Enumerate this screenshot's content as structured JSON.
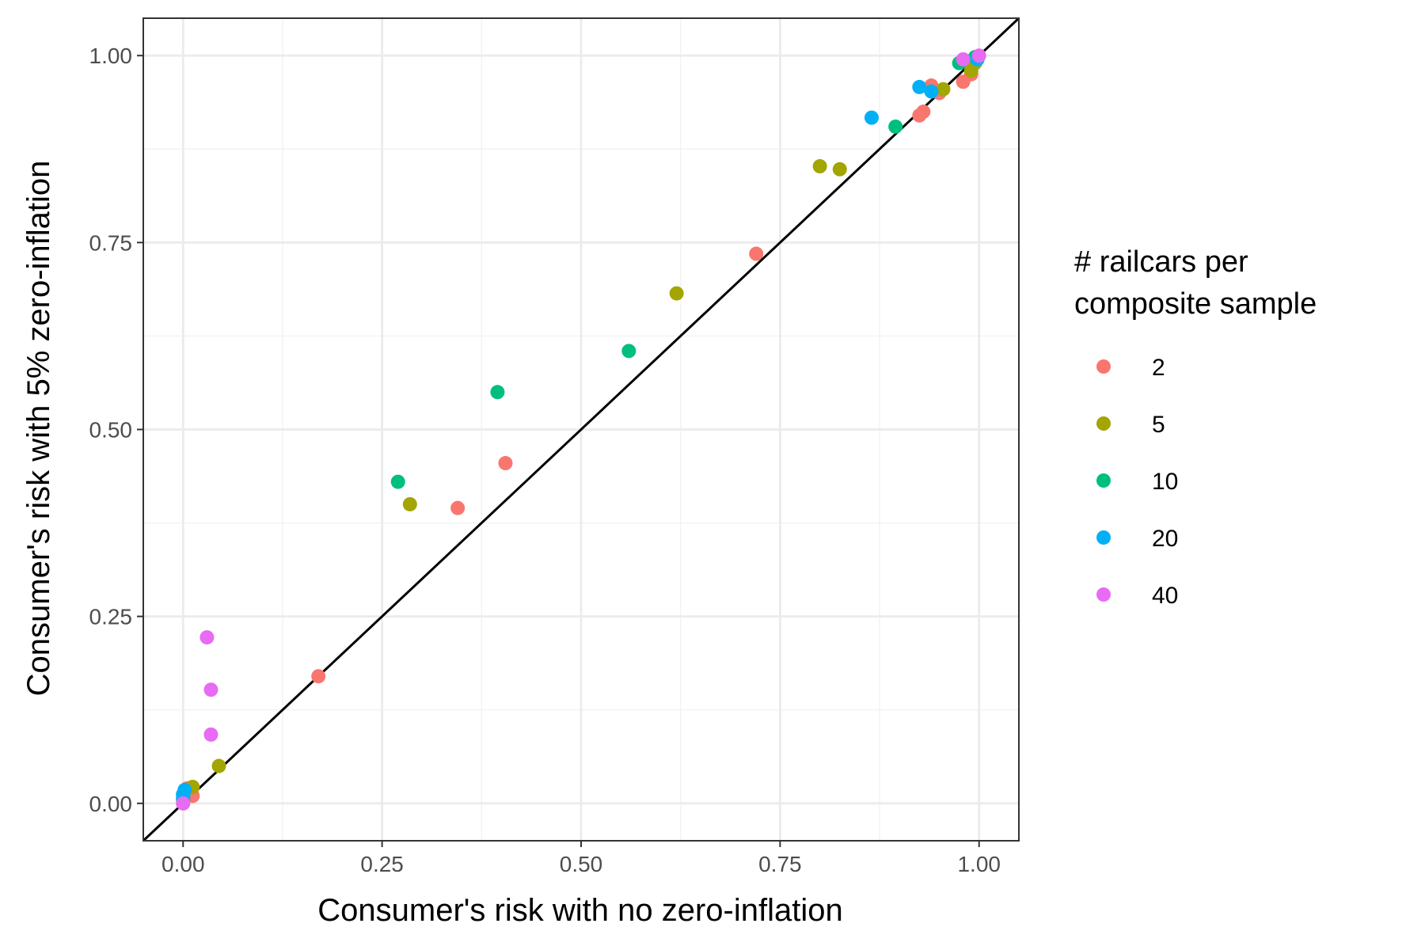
{
  "chart_data": {
    "type": "scatter",
    "xlabel": "Consumer's risk with no zero-inflation",
    "ylabel": "Consumer's risk with 5% zero-inflation",
    "xlim": [
      -0.05,
      1.05
    ],
    "ylim": [
      -0.05,
      1.05
    ],
    "x_ticks": [
      "0.00",
      "0.25",
      "0.50",
      "0.75",
      "1.00"
    ],
    "y_ticks": [
      "0.00",
      "0.25",
      "0.50",
      "0.75",
      "1.00"
    ],
    "grid": true,
    "reference_line": "y = x",
    "legend": {
      "title_lines": [
        "# railcars per",
        "composite sample"
      ],
      "position": "right"
    },
    "series": [
      {
        "name": "2",
        "color": "#F8766D",
        "points": [
          [
            0.0,
            0.0
          ],
          [
            0.002,
            0.015
          ],
          [
            0.005,
            0.02
          ],
          [
            0.012,
            0.01
          ],
          [
            0.17,
            0.17
          ],
          [
            0.345,
            0.395
          ],
          [
            0.405,
            0.455
          ],
          [
            0.72,
            0.735
          ],
          [
            0.925,
            0.92
          ],
          [
            0.93,
            0.925
          ],
          [
            0.94,
            0.96
          ],
          [
            0.95,
            0.95
          ],
          [
            0.98,
            0.965
          ],
          [
            0.99,
            0.975
          ]
        ]
      },
      {
        "name": "5",
        "color": "#A3A500",
        "points": [
          [
            0.0,
            0.005
          ],
          [
            0.012,
            0.022
          ],
          [
            0.045,
            0.05
          ],
          [
            0.285,
            0.4
          ],
          [
            0.62,
            0.682
          ],
          [
            0.8,
            0.852
          ],
          [
            0.825,
            0.848
          ],
          [
            0.955,
            0.955
          ],
          [
            0.99,
            0.98
          ],
          [
            0.995,
            0.99
          ]
        ]
      },
      {
        "name": "10",
        "color": "#00BF7D",
        "points": [
          [
            0.0,
            0.005
          ],
          [
            0.0,
            0.012
          ],
          [
            0.27,
            0.43
          ],
          [
            0.395,
            0.55
          ],
          [
            0.56,
            0.605
          ],
          [
            0.895,
            0.905
          ],
          [
            0.975,
            0.99
          ],
          [
            0.995,
            0.998
          ]
        ]
      },
      {
        "name": "20",
        "color": "#00B0F6",
        "points": [
          [
            0.0,
            0.008
          ],
          [
            0.0,
            0.012
          ],
          [
            0.002,
            0.018
          ],
          [
            0.865,
            0.917
          ],
          [
            0.925,
            0.958
          ],
          [
            0.94,
            0.952
          ],
          [
            0.998,
            0.995
          ]
        ]
      },
      {
        "name": "40",
        "color": "#E76BF3",
        "points": [
          [
            0.0,
            0.0
          ],
          [
            0.03,
            0.222
          ],
          [
            0.035,
            0.152
          ],
          [
            0.035,
            0.092
          ],
          [
            0.98,
            0.995
          ],
          [
            1.0,
            1.0
          ]
        ]
      }
    ]
  }
}
